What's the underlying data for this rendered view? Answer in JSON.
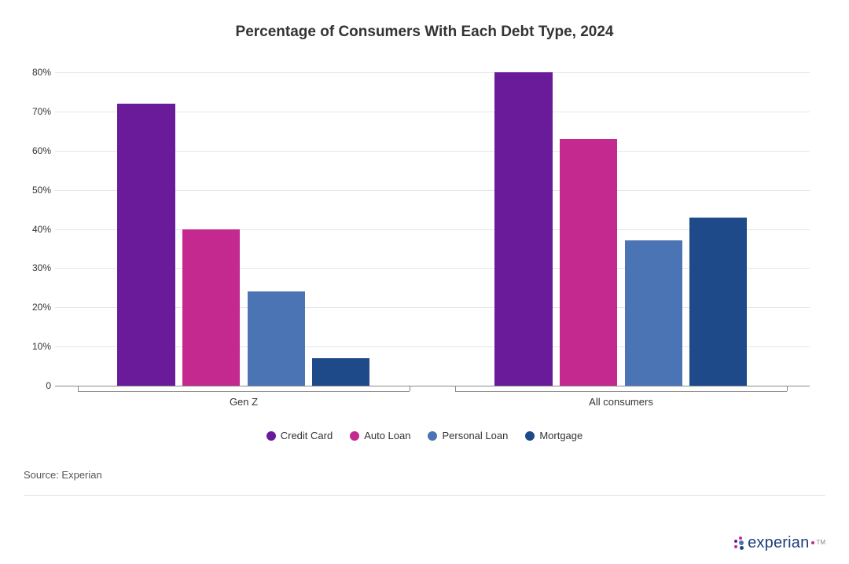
{
  "chart": {
    "type": "bar-grouped",
    "title": "Percentage of Consumers With Each Debt Type, 2024",
    "title_fontsize": 19,
    "title_color": "#333333",
    "background_color": "#ffffff",
    "grid_color": "#e6e6e6",
    "axis_color": "#888888",
    "label_fontsize": 12,
    "ylim_min": 0,
    "ylim_max": 80,
    "ytick_step": 10,
    "ytick_suffix": "%",
    "yticks": [
      {
        "value": 0,
        "label": "0"
      },
      {
        "value": 10,
        "label": "10%"
      },
      {
        "value": 20,
        "label": "20%"
      },
      {
        "value": 30,
        "label": "30%"
      },
      {
        "value": 40,
        "label": "40%"
      },
      {
        "value": 50,
        "label": "50%"
      },
      {
        "value": 60,
        "label": "60%"
      },
      {
        "value": 70,
        "label": "70%"
      },
      {
        "value": 80,
        "label": "80%"
      }
    ],
    "series": [
      {
        "key": "credit_card",
        "label": "Credit Card",
        "color": "#6a1b9a"
      },
      {
        "key": "auto_loan",
        "label": "Auto Loan",
        "color": "#c4298f"
      },
      {
        "key": "personal_loan",
        "label": "Personal Loan",
        "color": "#4a74b4"
      },
      {
        "key": "mortgage",
        "label": "Mortgage",
        "color": "#1e4a8a"
      }
    ],
    "categories": [
      {
        "label": "Gen Z",
        "values": {
          "credit_card": 72,
          "auto_loan": 40,
          "personal_loan": 24,
          "mortgage": 7
        }
      },
      {
        "label": "All consumers",
        "values": {
          "credit_card": 80,
          "auto_loan": 63,
          "personal_loan": 37,
          "mortgage": 43
        }
      }
    ],
    "group_layout": {
      "left_pct": [
        3,
        53
      ],
      "width_pct": 44,
      "bar_gap_pct": 2.2,
      "bar_inner_left_pct": 12
    }
  },
  "source_line": "Source: Experian",
  "brand": {
    "name": "experian",
    "text_color": "#1a3e7a",
    "dot_colors": {
      "a": "#6a1b9a",
      "b": "#c4298f",
      "c": "#4a74b4",
      "d": "#1e4a8a"
    }
  }
}
